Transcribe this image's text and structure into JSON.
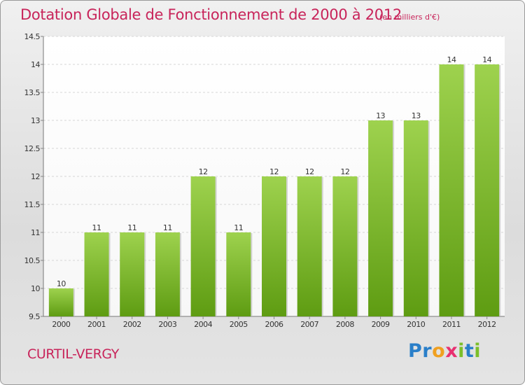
{
  "title": "Dotation Globale de Fonctionnement de 2000 à 2012",
  "unit_label": "(en milliers d'€)",
  "commune": "CURTIL-VERGY",
  "brand": {
    "letters": [
      "P",
      "r",
      "o",
      "x",
      "i",
      "t",
      "i"
    ],
    "colors": [
      "#2a7fc9",
      "#2a7fc9",
      "#f0a020",
      "#e83070",
      "#7cbf2a",
      "#2a7fc9",
      "#7cbf2a"
    ]
  },
  "colors": {
    "accent": "#c8245a",
    "bar_top": "#9ed24e",
    "bar_bottom": "#5e9c12"
  },
  "chart_data": {
    "type": "bar",
    "categories": [
      "2000",
      "2001",
      "2002",
      "2003",
      "2004",
      "2005",
      "2006",
      "2007",
      "2008",
      "2009",
      "2010",
      "2011",
      "2012"
    ],
    "values": [
      10,
      11,
      11,
      11,
      12,
      11,
      12,
      12,
      12,
      13,
      13,
      14,
      14
    ],
    "data_labels": [
      "10",
      "11",
      "11",
      "11",
      "12",
      "11",
      "12",
      "12",
      "12",
      "13",
      "13",
      "14",
      "14"
    ],
    "ylim": [
      9.5,
      14.5
    ],
    "yticks": [
      "9.5",
      "10",
      "10.5",
      "11",
      "11.5",
      "12",
      "12.5",
      "13",
      "13.5",
      "14",
      "14.5"
    ],
    "grid": true,
    "xlabel": "",
    "ylabel": ""
  }
}
